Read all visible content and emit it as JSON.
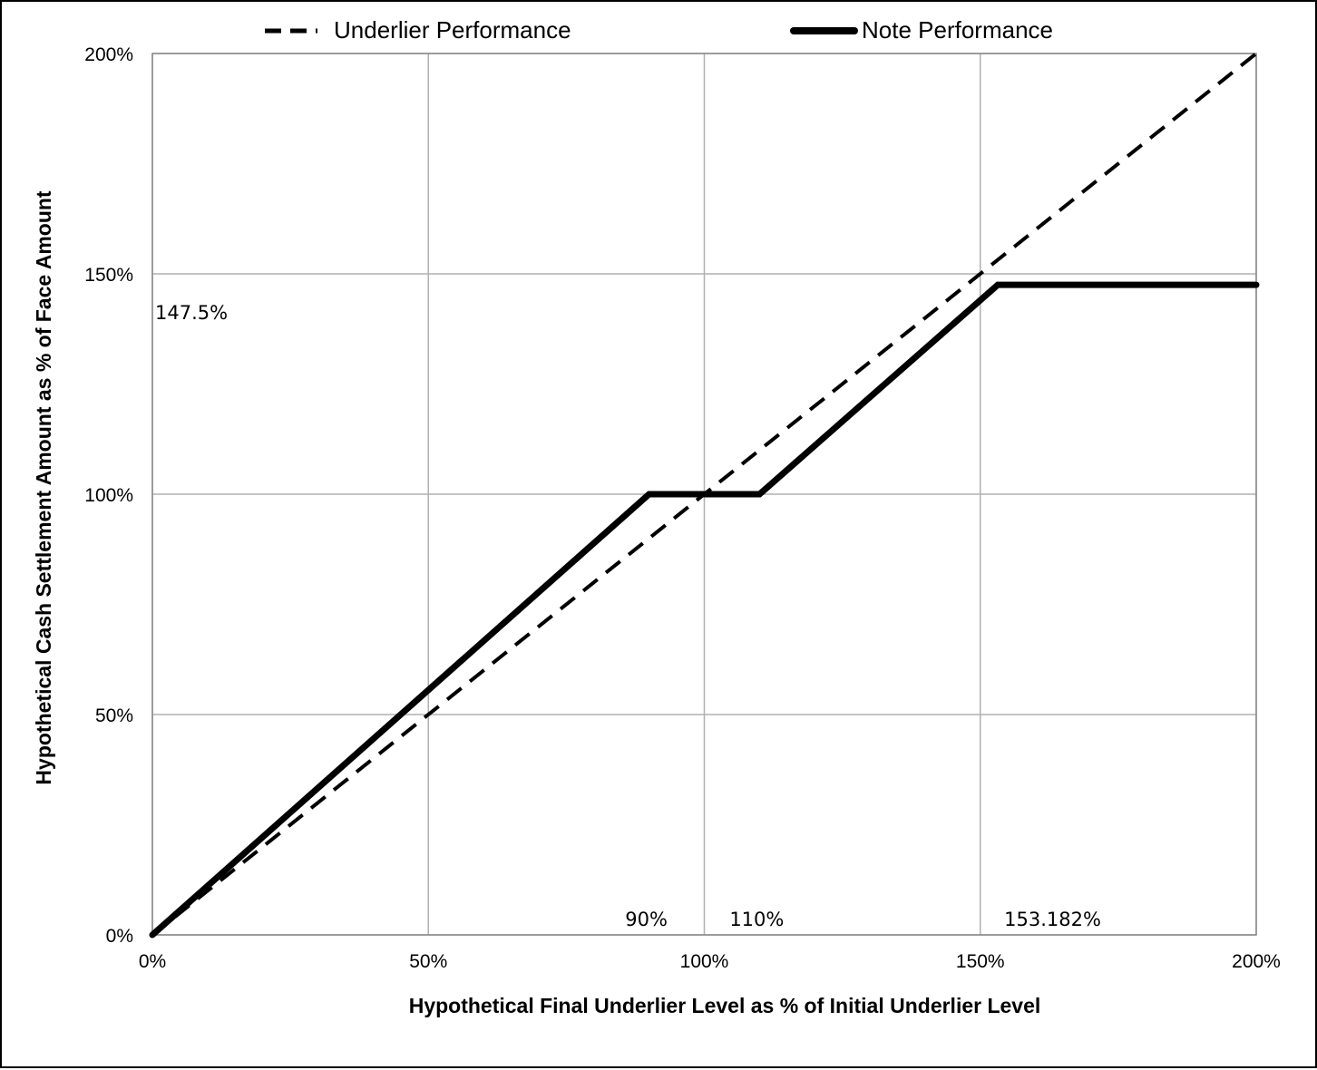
{
  "chart_data": {
    "type": "line",
    "xlabel": "Hypothetical Final Underlier Level as % of Initial Underlier Level",
    "ylabel": "Hypothetical Cash Settlement Amount as % of Face Amount",
    "xlim": [
      0,
      200
    ],
    "ylim": [
      0,
      200
    ],
    "x_ticks": [
      0,
      50,
      100,
      150,
      200
    ],
    "y_ticks": [
      0,
      50,
      100,
      150,
      200
    ],
    "x_tick_labels": [
      "0%",
      "50%",
      "100%",
      "150%",
      "200%"
    ],
    "y_tick_labels": [
      "0%",
      "50%",
      "100%",
      "150%",
      "200%"
    ],
    "grid": true,
    "legend_position": "top",
    "series": [
      {
        "name": "Underlier Performance",
        "style": "dashed",
        "color": "#000000",
        "points": [
          [
            0,
            0
          ],
          [
            200,
            200
          ]
        ]
      },
      {
        "name": "Note Performance",
        "style": "solid",
        "color": "#000000",
        "points": [
          [
            0,
            0
          ],
          [
            90,
            100
          ],
          [
            110,
            100
          ],
          [
            153.182,
            147.5
          ],
          [
            200,
            147.5
          ]
        ]
      }
    ],
    "annotations": [
      {
        "text": "147.5%",
        "x": 0,
        "y": 147.5,
        "anchor": "y"
      },
      {
        "text": "90%",
        "x": 90,
        "y": 0,
        "anchor": "x"
      },
      {
        "text": "110%",
        "x": 110,
        "y": 0,
        "anchor": "x"
      },
      {
        "text": "153.182%",
        "x": 153.182,
        "y": 0,
        "anchor": "x"
      }
    ]
  }
}
